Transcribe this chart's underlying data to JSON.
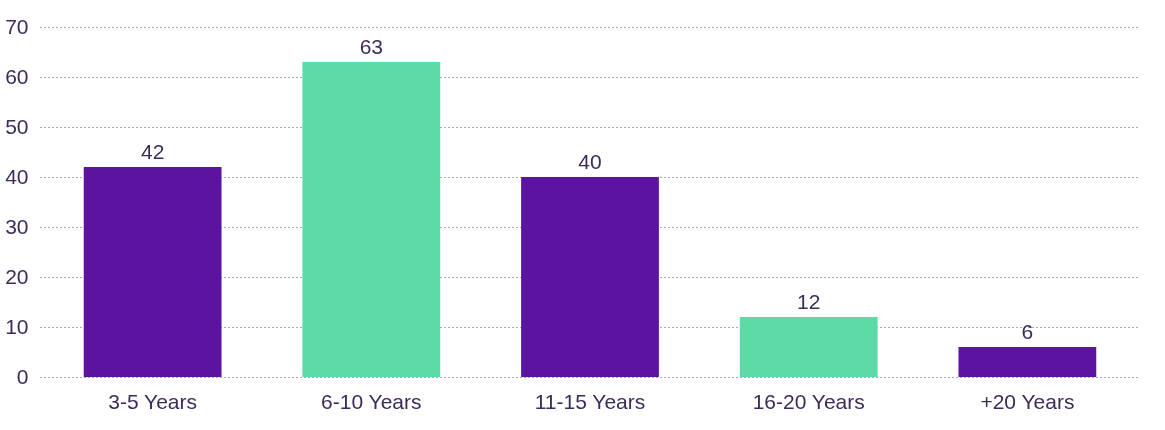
{
  "chart_data": {
    "type": "bar",
    "categories": [
      "3-5 Years",
      "6-10 Years",
      "11-15 Years",
      "16-20 Years",
      "+20 Years"
    ],
    "values": [
      42,
      63,
      40,
      12,
      6
    ],
    "colors": [
      "#5c139f",
      "#5cdba6",
      "#5c139f",
      "#5cdba6",
      "#5c139f"
    ],
    "ylim": [
      0,
      70
    ],
    "yticks": [
      0,
      10,
      20,
      30,
      40,
      50,
      60,
      70
    ],
    "grid": "y",
    "data_labels": true
  }
}
